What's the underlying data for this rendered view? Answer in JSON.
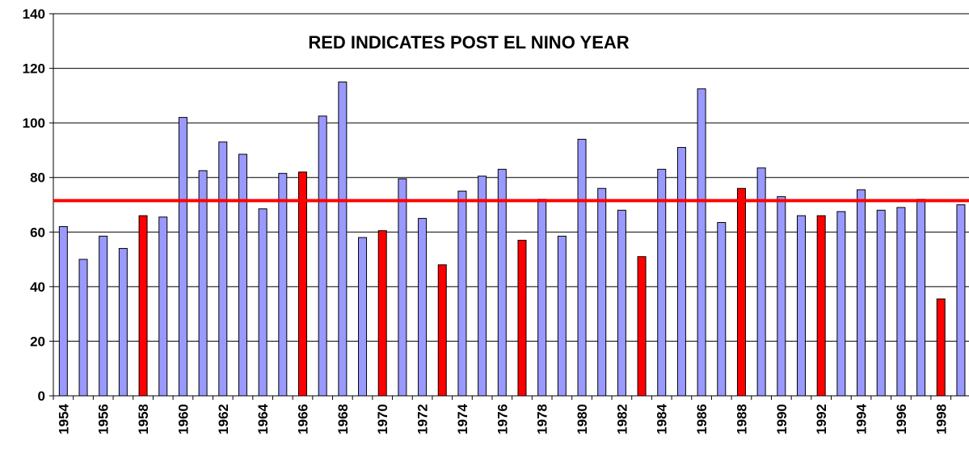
{
  "chart_data": {
    "type": "bar",
    "title": "RED INDICATES POST EL NINO YEAR",
    "categories": [
      "1954",
      null,
      "1956",
      null,
      "1958",
      null,
      "1960",
      null,
      "1962",
      null,
      "1964",
      null,
      "1966",
      null,
      "1968",
      null,
      "1970",
      null,
      "1972",
      null,
      "1974",
      null,
      "1976",
      null,
      "1978",
      null,
      "1980",
      null,
      "1982",
      null,
      "1984",
      null,
      "1986",
      null,
      "1988",
      null,
      "1990",
      null,
      "1992",
      null,
      "1994",
      null,
      "1996",
      null,
      "1998",
      null
    ],
    "values": [
      62,
      50,
      58.5,
      54,
      66,
      65.5,
      102,
      82.5,
      93,
      88.5,
      68.5,
      81.5,
      82,
      102.5,
      115,
      58,
      60.5,
      79.5,
      65,
      48,
      75,
      80.5,
      83,
      57,
      72,
      58.5,
      94,
      76,
      68,
      51,
      83,
      91,
      112.5,
      63.5,
      76,
      83.5,
      73,
      66,
      66,
      67.5,
      75.5,
      68,
      69,
      72,
      35.5,
      70
    ],
    "colors": [
      "#9999ff",
      "#9999ff",
      "#9999ff",
      "#9999ff",
      "#ff0000",
      "#9999ff",
      "#9999ff",
      "#9999ff",
      "#9999ff",
      "#9999ff",
      "#9999ff",
      "#9999ff",
      "#ff0000",
      "#9999ff",
      "#9999ff",
      "#9999ff",
      "#ff0000",
      "#9999ff",
      "#9999ff",
      "#ff0000",
      "#9999ff",
      "#9999ff",
      "#9999ff",
      "#ff0000",
      "#9999ff",
      "#9999ff",
      "#9999ff",
      "#9999ff",
      "#9999ff",
      "#ff0000",
      "#9999ff",
      "#9999ff",
      "#9999ff",
      "#9999ff",
      "#ff0000",
      "#9999ff",
      "#9999ff",
      "#9999ff",
      "#ff0000",
      "#9999ff",
      "#9999ff",
      "#9999ff",
      "#9999ff",
      "#9999ff",
      "#ff0000",
      "#9999ff"
    ],
    "reference_line": {
      "value": 71.5,
      "color": "#ff0000"
    },
    "ylim": [
      0,
      140
    ],
    "yticks": [
      0,
      20,
      40,
      60,
      80,
      100,
      120,
      140
    ],
    "grid": true
  }
}
